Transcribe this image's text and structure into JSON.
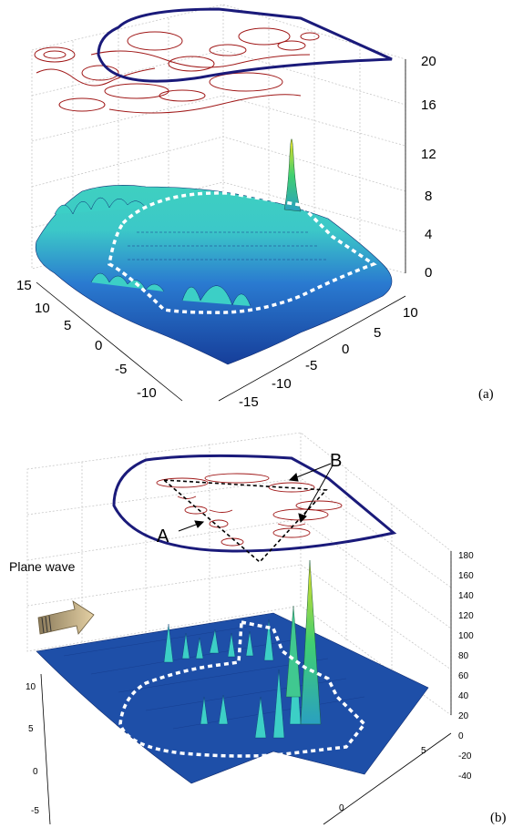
{
  "chart_data": [
    {
      "type": "surface3d",
      "panel_label": "(a)",
      "x_ticks": [
        "15",
        "10",
        "5",
        "0",
        "-5",
        "-10"
      ],
      "y_ticks": [
        "10",
        "5",
        "0",
        "-5",
        "-10",
        "-15"
      ],
      "z_ticks": [
        "20",
        "16",
        "12",
        "8",
        "4",
        "0"
      ],
      "zlim": [
        0,
        20
      ],
      "grid": true,
      "colors": {
        "surface_low": "#1f4fb0",
        "surface_high": "#e6f020",
        "contour": "#a01818",
        "outline": "#1a1a7a",
        "dashed": "#ffffff"
      }
    },
    {
      "type": "surface3d",
      "panel_label": "(b)",
      "x_ticks": [
        "10",
        "5",
        "0",
        "-5"
      ],
      "y_ticks": [
        "0",
        "5"
      ],
      "z_ticks": [
        "180",
        "160",
        "140",
        "120",
        "100",
        "80",
        "60",
        "40",
        "20",
        "0",
        "-20",
        "-40"
      ],
      "zlim": [
        -40,
        180
      ],
      "grid": true,
      "annotations": {
        "incident": "Plane wave",
        "label_a": "A",
        "label_b": "B"
      },
      "colors": {
        "surface_low": "#1f4fb0",
        "surface_high": "#e6f020",
        "contour": "#a01818",
        "outline": "#1a1a7a",
        "dashed": "#ffffff",
        "arrow": "#d8c49a"
      }
    }
  ]
}
